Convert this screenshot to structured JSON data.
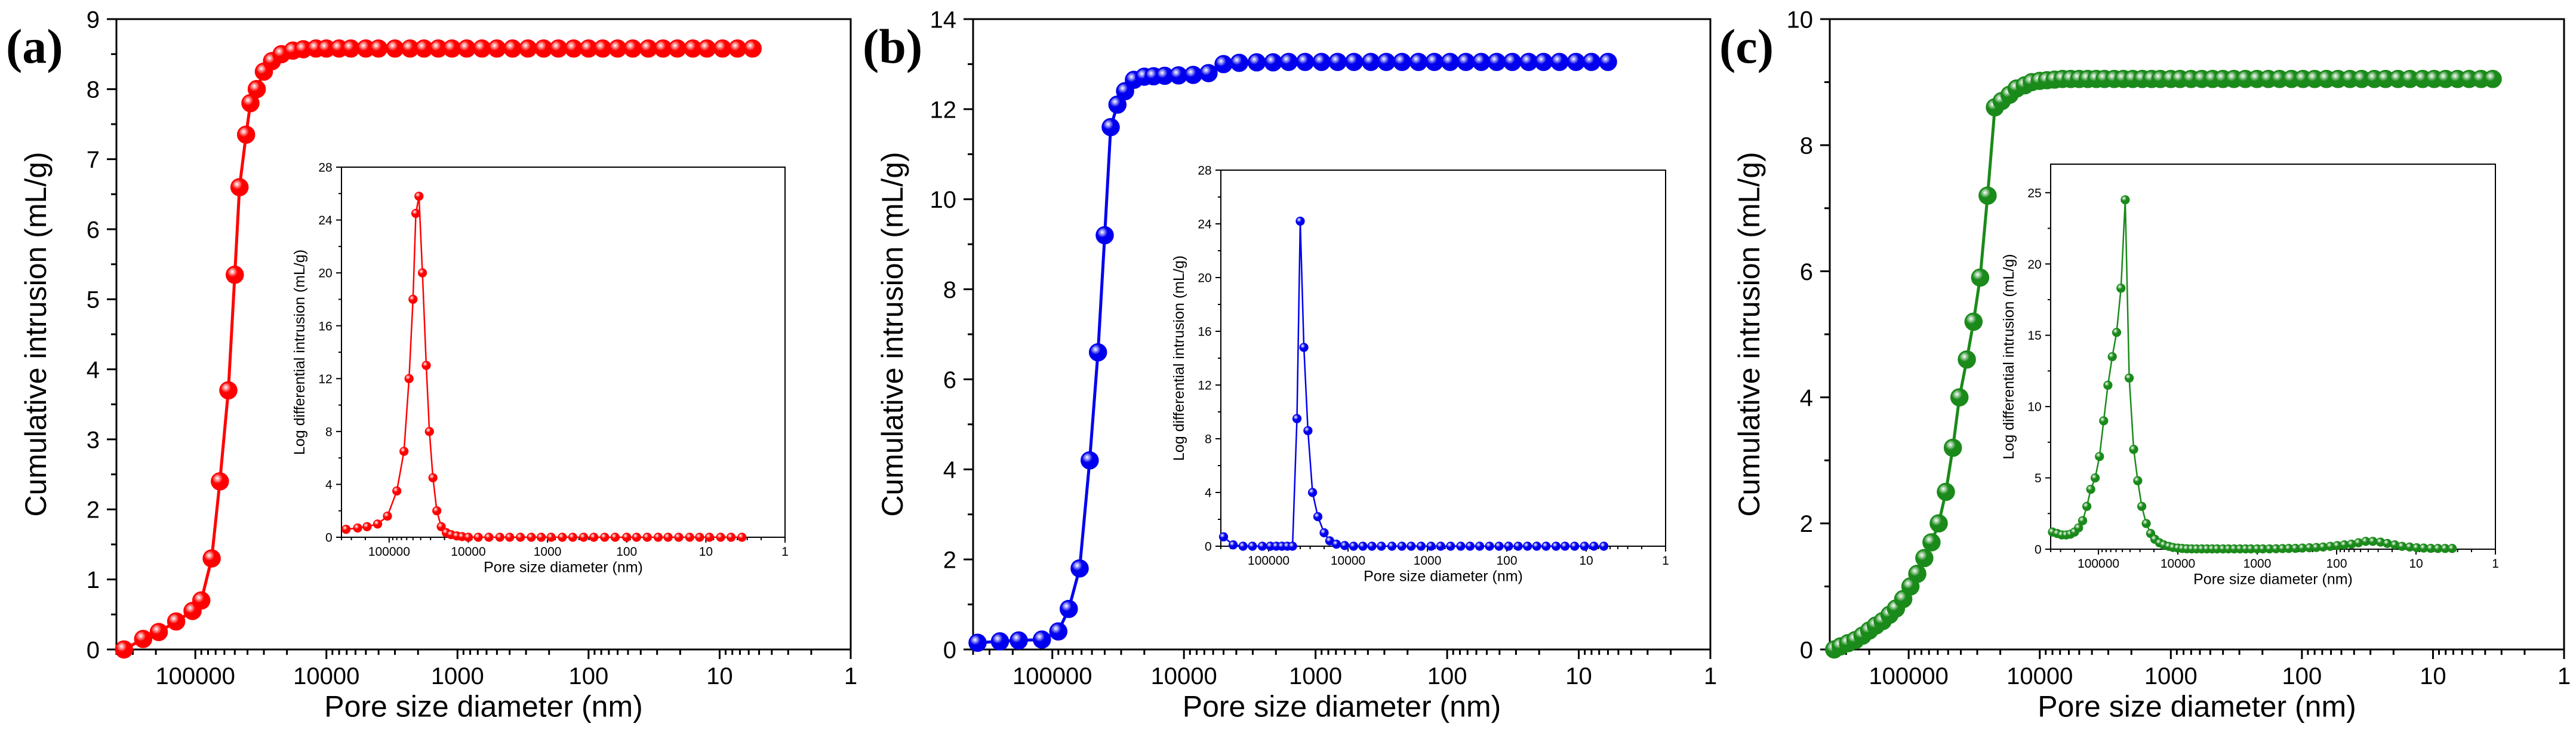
{
  "chart_data": [
    {
      "type": "line",
      "panel_label": "(a)",
      "color": "#ff0000",
      "xlabel": "Pore size diameter (nm)",
      "ylabel": "Cumulative intrusion (mL/g)",
      "x_scale": "log-reversed",
      "xlim": [
        400000,
        1
      ],
      "ylim": [
        0,
        9
      ],
      "x_ticks": [
        100000,
        10000,
        1000,
        100,
        10,
        1
      ],
      "x_tick_labels": [
        "100000",
        "10000",
        "1000",
        "100",
        "10",
        "1"
      ],
      "y_ticks": [
        0,
        1,
        2,
        3,
        4,
        5,
        6,
        7,
        8,
        9
      ],
      "y_tick_labels": [
        "0",
        "1",
        "2",
        "3",
        "4",
        "5",
        "6",
        "7",
        "8",
        "9"
      ],
      "series": [
        {
          "name": "Cumulative intrusion",
          "x": [
            350000,
            250000,
            190000,
            140000,
            105000,
            90000,
            75000,
            65000,
            56000,
            50000,
            46000,
            41000,
            38000,
            34000,
            30000,
            26000,
            22000,
            18000,
            15000,
            12000,
            10000,
            8000,
            6500,
            5000,
            4000,
            3000,
            2300,
            1800,
            1400,
            1100,
            850,
            650,
            500,
            380,
            290,
            220,
            170,
            130,
            100,
            78,
            60,
            46,
            35,
            27,
            21,
            16,
            12.5,
            9.5,
            7.3,
            5.6
          ],
          "y": [
            0,
            0.15,
            0.25,
            0.4,
            0.55,
            0.7,
            1.3,
            2.4,
            3.7,
            5.35,
            6.6,
            7.35,
            7.8,
            8.0,
            8.25,
            8.4,
            8.5,
            8.55,
            8.57,
            8.58,
            8.58,
            8.58,
            8.58,
            8.58,
            8.58,
            8.58,
            8.58,
            8.58,
            8.58,
            8.58,
            8.58,
            8.58,
            8.58,
            8.58,
            8.58,
            8.58,
            8.58,
            8.58,
            8.58,
            8.58,
            8.58,
            8.58,
            8.58,
            8.58,
            8.58,
            8.58,
            8.58,
            8.58,
            8.58,
            8.58
          ]
        }
      ],
      "inset": {
        "xlabel": "Pore size diameter (nm)",
        "ylabel": "Log differential intrusion (mL/g)",
        "x_scale": "log-reversed",
        "xlim": [
          400000,
          1
        ],
        "ylim": [
          0,
          28
        ],
        "x_ticks": [
          100000,
          10000,
          1000,
          100,
          10,
          1
        ],
        "x_tick_labels": [
          "100000",
          "10000",
          "1000",
          "100",
          "10",
          "1"
        ],
        "y_ticks": [
          0,
          4,
          8,
          12,
          16,
          20,
          24,
          28
        ],
        "y_tick_labels": [
          "0",
          "4",
          "8",
          "12",
          "16",
          "20",
          "24",
          "28"
        ],
        "x": [
          350000,
          250000,
          190000,
          140000,
          105000,
          80000,
          65000,
          56000,
          50000,
          46000,
          42000,
          38000,
          34000,
          31000,
          28000,
          25000,
          22000,
          19000,
          16500,
          14000,
          12000,
          10000,
          7500,
          5500,
          4000,
          3000,
          2200,
          1600,
          1200,
          900,
          650,
          480,
          350,
          260,
          190,
          140,
          100,
          75,
          55,
          40,
          30,
          22,
          16,
          12,
          9,
          6.5,
          4.8,
          3.5
        ],
        "y": [
          0.6,
          0.7,
          0.8,
          1.0,
          1.6,
          3.5,
          6.5,
          12,
          18,
          24.5,
          25.8,
          20,
          13,
          8,
          4.5,
          2.0,
          0.8,
          0.35,
          0.2,
          0.1,
          0.05,
          0,
          0,
          0,
          0,
          0,
          0,
          0,
          0,
          0,
          0,
          0,
          0,
          0,
          0,
          0,
          0,
          0,
          0,
          0,
          0,
          0,
          0,
          0,
          0,
          0,
          0,
          0
        ]
      }
    },
    {
      "type": "line",
      "panel_label": "(b)",
      "color": "#0000ee",
      "xlabel": "Pore size diameter (nm)",
      "ylabel": "Cumulative intrusion (mL/g)",
      "x_scale": "log-reversed",
      "xlim": [
        400000,
        1
      ],
      "ylim": [
        0,
        14
      ],
      "x_ticks": [
        100000,
        10000,
        1000,
        100,
        10,
        1
      ],
      "x_tick_labels": [
        "100000",
        "10000",
        "1000",
        "100",
        "10",
        "1"
      ],
      "y_ticks": [
        0,
        2,
        4,
        6,
        8,
        10,
        12,
        14
      ],
      "y_tick_labels": [
        "0",
        "2",
        "4",
        "6",
        "8",
        "10",
        "12",
        "14"
      ],
      "series": [
        {
          "name": "Cumulative intrusion",
          "x": [
            370000,
            250000,
            180000,
            120000,
            90000,
            75000,
            62000,
            52000,
            45000,
            40000,
            36000,
            32000,
            28000,
            24000,
            20000,
            17000,
            14000,
            11000,
            8500,
            6500,
            5000,
            3800,
            2800,
            2100,
            1600,
            1200,
            900,
            680,
            510,
            380,
            290,
            220,
            165,
            125,
            95,
            72,
            55,
            42,
            32,
            24,
            18.5,
            14,
            10.5,
            8,
            6
          ],
          "y": [
            0.15,
            0.18,
            0.2,
            0.22,
            0.4,
            0.9,
            1.8,
            4.2,
            6.6,
            9.2,
            11.6,
            12.1,
            12.4,
            12.65,
            12.72,
            12.73,
            12.74,
            12.75,
            12.76,
            12.8,
            13.0,
            13.03,
            13.04,
            13.04,
            13.05,
            13.05,
            13.05,
            13.05,
            13.05,
            13.05,
            13.05,
            13.05,
            13.05,
            13.05,
            13.05,
            13.05,
            13.05,
            13.05,
            13.05,
            13.05,
            13.05,
            13.05,
            13.05,
            13.05,
            13.05
          ]
        }
      ],
      "inset": {
        "xlabel": "Pore size diameter (nm)",
        "ylabel": "Log differential intrusion (mL/g)",
        "x_scale": "log-reversed",
        "xlim": [
          400000,
          1
        ],
        "ylim": [
          0,
          28
        ],
        "x_ticks": [
          100000,
          10000,
          1000,
          100,
          10,
          1
        ],
        "x_tick_labels": [
          "100000",
          "10000",
          "1000",
          "100",
          "10",
          "1"
        ],
        "y_ticks": [
          0,
          4,
          8,
          12,
          16,
          20,
          24,
          28
        ],
        "y_tick_labels": [
          "0",
          "4",
          "8",
          "12",
          "16",
          "20",
          "24",
          "28"
        ],
        "x": [
          370000,
          280000,
          210000,
          160000,
          120000,
          95000,
          80000,
          68000,
          58000,
          50000,
          44000,
          40000,
          36000,
          32000,
          28000,
          24000,
          20000,
          17000,
          14000,
          11000,
          8500,
          6500,
          5000,
          3800,
          2800,
          2100,
          1600,
          1200,
          900,
          680,
          510,
          380,
          290,
          220,
          165,
          125,
          95,
          72,
          55,
          42,
          32,
          24,
          18.5,
          14,
          10.5,
          8,
          6
        ],
        "y": [
          0.7,
          0.1,
          0,
          0,
          0,
          0,
          0,
          0,
          0,
          0,
          9.5,
          24.2,
          14.8,
          8.6,
          4.0,
          2.2,
          1.0,
          0.4,
          0.15,
          0.05,
          0,
          0,
          0,
          0,
          0,
          0,
          0,
          0,
          0,
          0,
          0,
          0,
          0,
          0,
          0,
          0,
          0,
          0,
          0,
          0,
          0,
          0,
          0,
          0,
          0,
          0,
          0
        ]
      }
    },
    {
      "type": "line",
      "panel_label": "(c)",
      "color": "#1a8a1a",
      "xlabel": "Pore size diameter (nm)",
      "ylabel": "Cumulative intrusion (mL/g)",
      "x_scale": "log-reversed",
      "xlim": [
        400000,
        1
      ],
      "ylim": [
        0,
        10
      ],
      "x_ticks": [
        100000,
        10000,
        1000,
        100,
        10,
        1
      ],
      "x_tick_labels": [
        "100000",
        "10000",
        "1000",
        "100",
        "10",
        "1"
      ],
      "y_ticks": [
        0,
        2,
        4,
        6,
        8,
        10
      ],
      "y_tick_labels": [
        "0",
        "2",
        "4",
        "6",
        "8",
        "10"
      ],
      "series": [
        {
          "name": "Cumulative intrusion",
          "x": [
            370000,
            330000,
            290000,
            255000,
            225000,
            200000,
            178000,
            158000,
            140000,
            125000,
            110000,
            97000,
            86000,
            76000,
            67000,
            59000,
            52000,
            46000,
            41000,
            36000,
            32000,
            28500,
            25000,
            22000,
            19500,
            17000,
            15000,
            13000,
            11500,
            10000,
            8800,
            7700,
            6700,
            5800,
            5000,
            4300,
            3700,
            3200,
            2700,
            2300,
            1950,
            1650,
            1400,
            1200,
            1000,
            850,
            700,
            580,
            480,
            400,
            330,
            270,
            220,
            180,
            148,
            120,
            98,
            80,
            65,
            53,
            43,
            35,
            28,
            23,
            18.5,
            15,
            12,
            9.8,
            8,
            6.5,
            5.3,
            4.3,
            3.5
          ],
          "y": [
            0,
            0.05,
            0.1,
            0.15,
            0.22,
            0.3,
            0.38,
            0.45,
            0.55,
            0.65,
            0.8,
            1.0,
            1.2,
            1.45,
            1.7,
            2.0,
            2.5,
            3.2,
            4.0,
            4.6,
            5.2,
            5.9,
            7.2,
            8.6,
            8.7,
            8.8,
            8.9,
            8.95,
            9.0,
            9.02,
            9.03,
            9.04,
            9.05,
            9.05,
            9.05,
            9.05,
            9.05,
            9.05,
            9.05,
            9.05,
            9.05,
            9.05,
            9.05,
            9.05,
            9.05,
            9.05,
            9.05,
            9.05,
            9.05,
            9.05,
            9.05,
            9.05,
            9.05,
            9.05,
            9.05,
            9.05,
            9.05,
            9.05,
            9.05,
            9.05,
            9.05,
            9.05,
            9.05,
            9.05,
            9.05,
            9.05,
            9.05,
            9.05,
            9.05,
            9.05,
            9.05,
            9.05,
            9.05
          ]
        }
      ],
      "inset": {
        "xlabel": "Pore size diameter (nm)",
        "ylabel": "Log differential intrusion (mL/g)",
        "x_scale": "log-reversed",
        "xlim": [
          400000,
          1
        ],
        "ylim": [
          0,
          27
        ],
        "x_ticks": [
          100000,
          10000,
          1000,
          100,
          10,
          1
        ],
        "x_tick_labels": [
          "100000",
          "10000",
          "1000",
          "100",
          "10",
          "1"
        ],
        "y_ticks": [
          0,
          5,
          10,
          15,
          20,
          25
        ],
        "y_tick_labels": [
          "0",
          "5",
          "10",
          "15",
          "20",
          "25"
        ],
        "x": [
          380000,
          330000,
          290000,
          255000,
          225000,
          200000,
          178000,
          158000,
          140000,
          125000,
          110000,
          97000,
          86000,
          76000,
          67000,
          59000,
          52000,
          46000,
          41000,
          36000,
          32000,
          28500,
          25000,
          22000,
          19500,
          17000,
          15000,
          13000,
          11500,
          10000,
          8800,
          7700,
          6700,
          5800,
          5000,
          4300,
          3700,
          3200,
          2700,
          2300,
          1950,
          1650,
          1400,
          1200,
          1000,
          850,
          700,
          580,
          480,
          400,
          330,
          270,
          220,
          180,
          148,
          120,
          98,
          80,
          65,
          53,
          43,
          35,
          28,
          23,
          18.5,
          15,
          12,
          9.8,
          8,
          6.5,
          5.3,
          4.3,
          3.5
        ],
        "y": [
          1.2,
          1.1,
          1.0,
          1.0,
          1.05,
          1.2,
          1.5,
          2.0,
          3.0,
          4.2,
          5.0,
          6.5,
          9.0,
          11.5,
          13.5,
          15.2,
          18.3,
          24.5,
          12.0,
          7.0,
          4.8,
          3.0,
          1.8,
          1.1,
          0.7,
          0.45,
          0.3,
          0.2,
          0.12,
          0.08,
          0.05,
          0.03,
          0.02,
          0.02,
          0.02,
          0.02,
          0.02,
          0.02,
          0.02,
          0.02,
          0.02,
          0.02,
          0.02,
          0.02,
          0.02,
          0.02,
          0.02,
          0.03,
          0.04,
          0.05,
          0.06,
          0.08,
          0.1,
          0.12,
          0.15,
          0.2,
          0.25,
          0.3,
          0.35,
          0.45,
          0.55,
          0.55,
          0.5,
          0.4,
          0.3,
          0.2,
          0.15,
          0.1,
          0.08,
          0.06,
          0.05,
          0.05,
          0.05
        ]
      }
    }
  ]
}
